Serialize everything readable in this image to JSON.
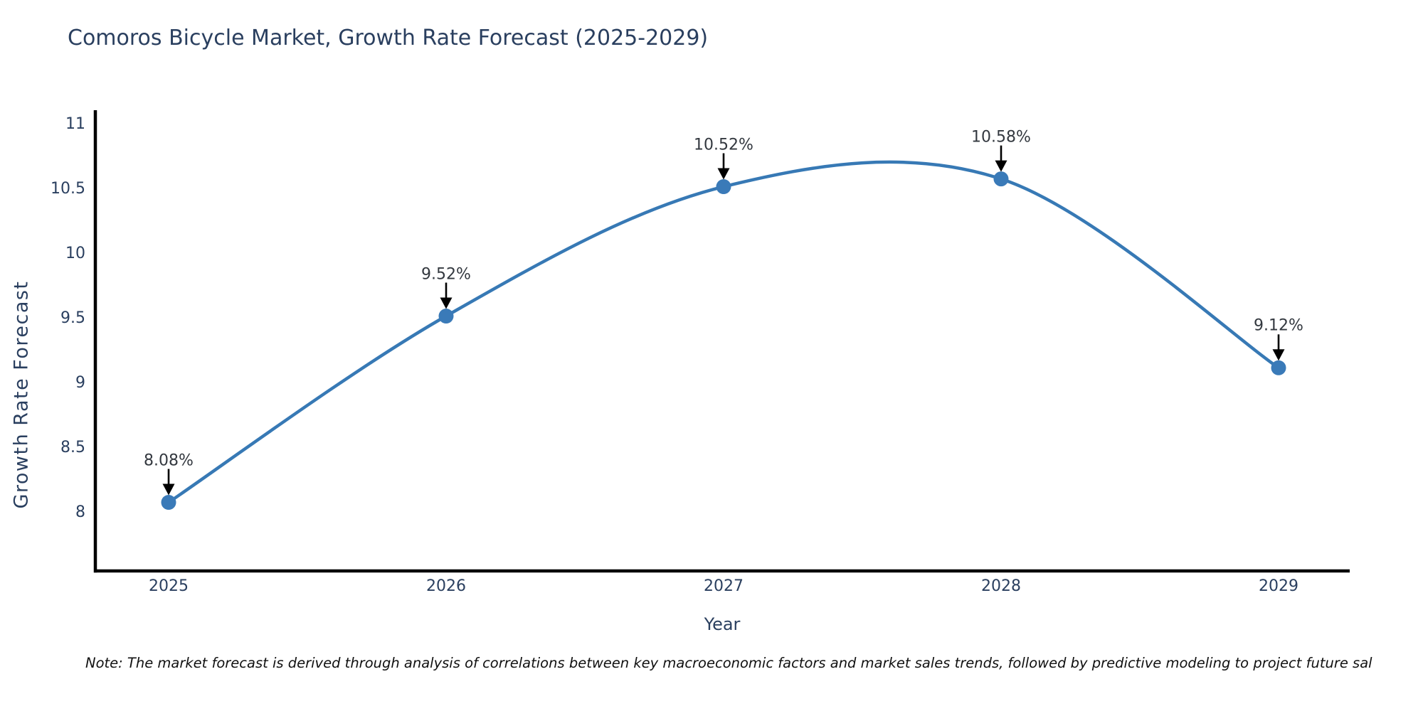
{
  "note": "Note: The market forecast is derived through analysis of correlations between key macroeconomic factors and market sales trends, followed by predictive modeling to project future sal",
  "chart_data": {
    "type": "line",
    "title": "Comoros Bicycle Market, Growth Rate Forecast (2025-2029)",
    "x": [
      "2025",
      "2026",
      "2027",
      "2028",
      "2029"
    ],
    "values": [
      8.08,
      9.52,
      10.52,
      10.58,
      9.12
    ],
    "point_labels": [
      "8.08%",
      "9.52%",
      "10.52%",
      "10.58%",
      "9.12%"
    ],
    "xlabel": "Year",
    "ylabel": "Growth Rate Forecast",
    "yticks": [
      8,
      8.5,
      9,
      9.5,
      10,
      10.5,
      11
    ],
    "ylim": [
      7.55,
      11.1
    ],
    "line_shape": "spline",
    "grid": false,
    "legend": "none",
    "annotation_arrows": "down-arrow-to-point",
    "colors": {
      "line": "#3779b5",
      "marker": "#3a7ab8",
      "axis": "#000000",
      "text": "#2a3f5f",
      "annotation_text": "#33383f",
      "arrow": "#000000",
      "background": "#ffffff"
    }
  }
}
